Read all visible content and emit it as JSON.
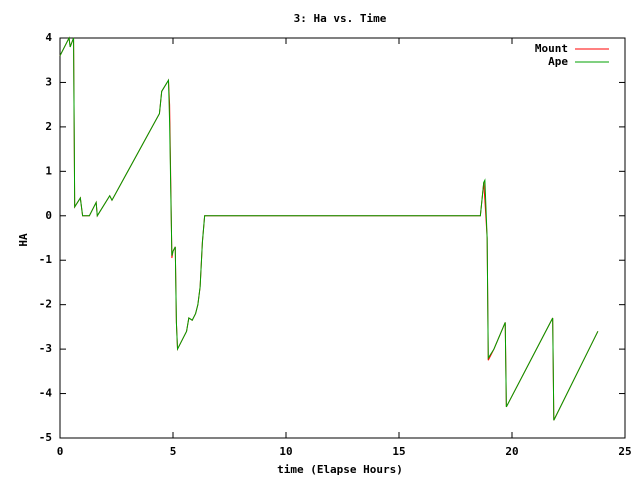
{
  "chart_data": {
    "type": "line",
    "title": "3: Ha vs. Time",
    "xlabel": "time (Elapse Hours)",
    "ylabel": "HA",
    "x": [
      0,
      0.3,
      0.4,
      0.45,
      0.6,
      0.65,
      0.9,
      1.0,
      1.3,
      1.6,
      1.65,
      2.2,
      2.3,
      4.4,
      4.5,
      4.8,
      4.85,
      4.95,
      5.0,
      5.1,
      5.15,
      5.2,
      5.6,
      5.7,
      5.85,
      6.0,
      6.1,
      6.2,
      6.3,
      6.4,
      18.6,
      18.7,
      18.75,
      18.8,
      18.9,
      18.95,
      19.2,
      19.7,
      19.75,
      21.8,
      21.85,
      23.8
    ],
    "series": [
      {
        "name": "Mount",
        "color": "#ff0000",
        "values": [
          3.6,
          3.9,
          4.0,
          3.8,
          4.0,
          0.2,
          0.4,
          0,
          0,
          0.3,
          0,
          0.45,
          0.35,
          2.3,
          2.8,
          3.05,
          2.5,
          -0.95,
          -0.8,
          -0.7,
          -2.4,
          -3.0,
          -2.6,
          -2.3,
          -2.35,
          -2.2,
          -2.0,
          -1.6,
          -0.6,
          0,
          0,
          0.5,
          0.75,
          0.35,
          -0.5,
          -3.25,
          -3.0,
          -2.4,
          -4.3,
          -2.3,
          -4.6,
          -2.6
        ]
      },
      {
        "name": "Ape",
        "color": "#00a000",
        "values": [
          3.6,
          3.9,
          4.0,
          3.8,
          4.0,
          0.2,
          0.4,
          0,
          0,
          0.3,
          0,
          0.45,
          0.35,
          2.3,
          2.8,
          3.05,
          2.1,
          -0.9,
          -0.8,
          -0.7,
          -2.4,
          -3.0,
          -2.6,
          -2.3,
          -2.35,
          -2.2,
          -2.0,
          -1.6,
          -0.6,
          0,
          0,
          0.5,
          0.75,
          0.8,
          -0.5,
          -3.2,
          -3.0,
          -2.4,
          -4.3,
          -2.3,
          -4.6,
          -2.6
        ]
      }
    ],
    "xlim": [
      0,
      25
    ],
    "xticks": [
      0,
      5,
      10,
      15,
      20,
      25
    ],
    "ylim": [
      -5,
      4
    ],
    "yticks": [
      -5,
      -4,
      -3,
      -2,
      -1,
      0,
      1,
      2,
      3,
      4
    ],
    "legend": "top-right"
  }
}
